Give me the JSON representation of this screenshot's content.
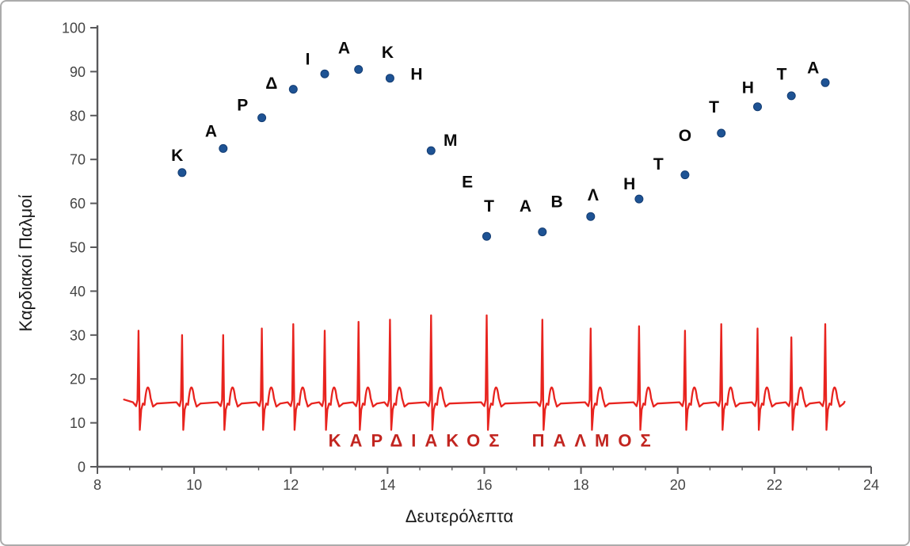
{
  "chart_data": {
    "type": "scatter",
    "title": "",
    "xlabel": "Δευτερόλεπτα",
    "ylabel": "Καρδιακοί Παλμοί",
    "xlim": [
      8,
      24
    ],
    "ylim": [
      0,
      100
    ],
    "x_ticks": [
      8,
      10,
      12,
      14,
      16,
      18,
      20,
      22,
      24
    ],
    "y_ticks": [
      0,
      10,
      20,
      30,
      40,
      50,
      60,
      70,
      80,
      90,
      100
    ],
    "grid": false,
    "legend": "none",
    "axis_color": "#59595b",
    "tick_label_color": "#454545",
    "series": {
      "heart_rate_points": {
        "name": "Καρδιακοί Παλμοί",
        "marker": "dot",
        "marker_color": "#1e5394",
        "points": [
          {
            "t": 9.75,
            "bpm": 67
          },
          {
            "t": 10.6,
            "bpm": 72.5
          },
          {
            "t": 11.4,
            "bpm": 79.5
          },
          {
            "t": 12.05,
            "bpm": 86
          },
          {
            "t": 12.7,
            "bpm": 89.5
          },
          {
            "t": 13.4,
            "bpm": 90.5
          },
          {
            "t": 14.05,
            "bpm": 88.5
          },
          {
            "t": 14.9,
            "bpm": 72
          },
          {
            "t": 16.05,
            "bpm": 52.5
          },
          {
            "t": 17.2,
            "bpm": 53.5
          },
          {
            "t": 18.2,
            "bpm": 57
          },
          {
            "t": 19.2,
            "bpm": 61
          },
          {
            "t": 20.15,
            "bpm": 66.5
          },
          {
            "t": 20.9,
            "bpm": 76
          },
          {
            "t": 21.65,
            "bpm": 82
          },
          {
            "t": 22.35,
            "bpm": 84.5
          },
          {
            "t": 23.05,
            "bpm": 87.5
          }
        ]
      },
      "letter_labels": {
        "phrase": "ΚΑΡΔΙΑΚΗ ΜΕΤΑΒΛΗΤΟΤΗΤΑ",
        "color": "#0a0a0a",
        "items": [
          {
            "ch": "Κ",
            "t": 9.65,
            "bpm": 71
          },
          {
            "ch": "Α",
            "t": 10.35,
            "bpm": 76.5
          },
          {
            "ch": "Ρ",
            "t": 11.0,
            "bpm": 82.5
          },
          {
            "ch": "Δ",
            "t": 11.6,
            "bpm": 87.5
          },
          {
            "ch": "Ι",
            "t": 12.35,
            "bpm": 93
          },
          {
            "ch": "Α",
            "t": 13.1,
            "bpm": 95.5
          },
          {
            "ch": "Κ",
            "t": 14.0,
            "bpm": 94.5
          },
          {
            "ch": "Η",
            "t": 14.6,
            "bpm": 89.5
          },
          {
            "ch": "Μ",
            "t": 15.3,
            "bpm": 74.5
          },
          {
            "ch": "Ε",
            "t": 15.65,
            "bpm": 65
          },
          {
            "ch": "Τ",
            "t": 16.1,
            "bpm": 59.5
          },
          {
            "ch": "Α",
            "t": 16.85,
            "bpm": 59.5
          },
          {
            "ch": "Β",
            "t": 17.5,
            "bpm": 60.5
          },
          {
            "ch": "Λ",
            "t": 18.25,
            "bpm": 62
          },
          {
            "ch": "Η",
            "t": 19.0,
            "bpm": 64.5
          },
          {
            "ch": "Τ",
            "t": 19.6,
            "bpm": 69
          },
          {
            "ch": "Ο",
            "t": 20.15,
            "bpm": 75.5
          },
          {
            "ch": "Τ",
            "t": 20.75,
            "bpm": 82
          },
          {
            "ch": "Η",
            "t": 21.45,
            "bpm": 86.5
          },
          {
            "ch": "Τ",
            "t": 22.15,
            "bpm": 89.5
          },
          {
            "ch": "Α",
            "t": 22.8,
            "bpm": 91
          }
        ]
      },
      "ecg": {
        "name": "ΚΑΡΔΙΑΚΟΣ ΠΑΛΜΟΣ",
        "color": "#e8241f",
        "baseline_bpm": 15,
        "s_dip_bpm": 8.4,
        "t_wave_bpm": 21.2,
        "start_t": 8.55,
        "end_t": 23.45,
        "beats": [
          {
            "t": 8.85,
            "peak": 31
          },
          {
            "t": 9.75,
            "peak": 30
          },
          {
            "t": 10.6,
            "peak": 30
          },
          {
            "t": 11.4,
            "peak": 31.5
          },
          {
            "t": 12.05,
            "peak": 32.5
          },
          {
            "t": 12.7,
            "peak": 31
          },
          {
            "t": 13.4,
            "peak": 33
          },
          {
            "t": 14.05,
            "peak": 33.5
          },
          {
            "t": 14.9,
            "peak": 34.5
          },
          {
            "t": 16.05,
            "peak": 34.5
          },
          {
            "t": 17.2,
            "peak": 33.5
          },
          {
            "t": 18.2,
            "peak": 31.5
          },
          {
            "t": 19.2,
            "peak": 32
          },
          {
            "t": 20.15,
            "peak": 31
          },
          {
            "t": 20.9,
            "peak": 32.5
          },
          {
            "t": 21.65,
            "peak": 31.5
          },
          {
            "t": 22.35,
            "peak": 29.5
          },
          {
            "t": 23.05,
            "peak": 32.5
          }
        ],
        "label": "ΚΑΡΔΙΑΚΟΣ ΠΑΛΜΟΣ",
        "label_color": "#c22520",
        "label_t": 16.2,
        "label_bpm": 4.6
      }
    }
  }
}
